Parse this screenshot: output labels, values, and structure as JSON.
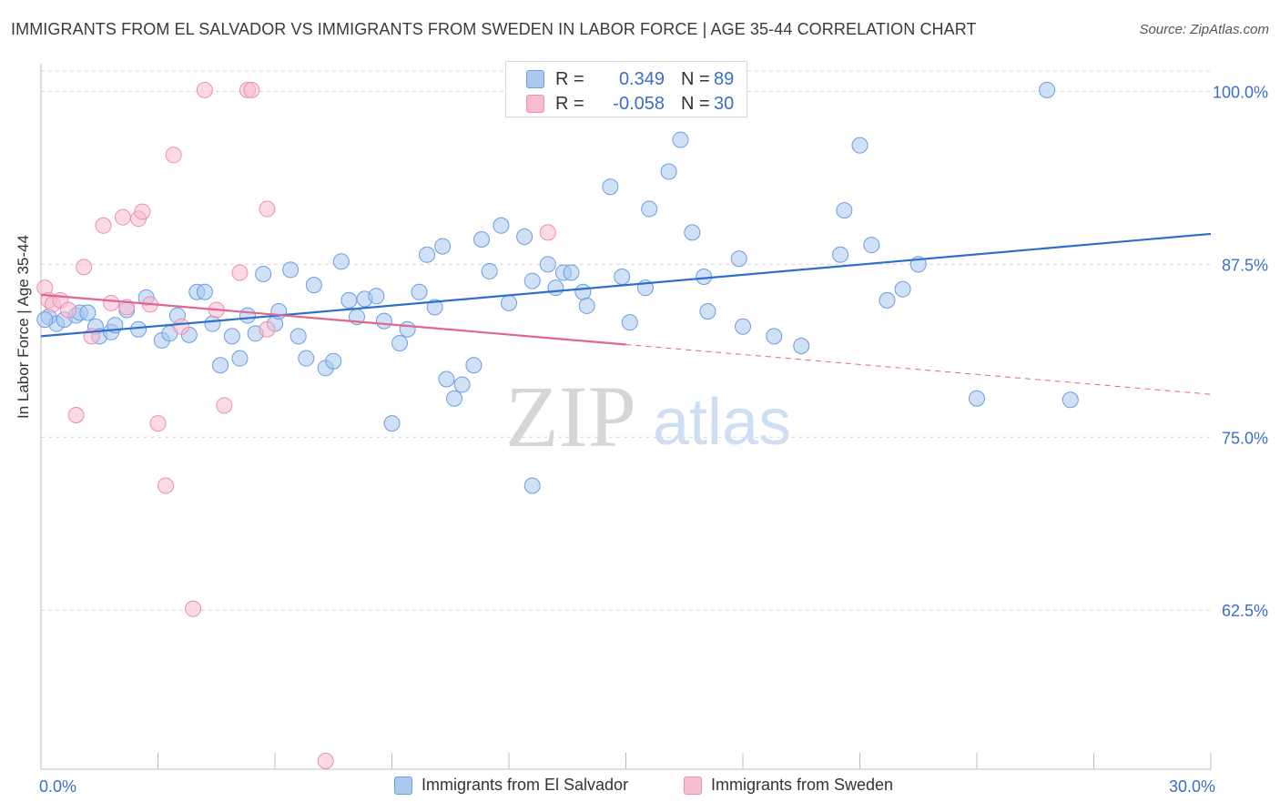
{
  "title": "IMMIGRANTS FROM EL SALVADOR VS IMMIGRANTS FROM SWEDEN IN LABOR FORCE | AGE 35-44 CORRELATION CHART",
  "source": "Source: ZipAtlas.com",
  "watermark": {
    "zip": "ZIP",
    "atlas": "atlas"
  },
  "colors": {
    "blue_fill": "#aac8f0",
    "blue_stroke": "#6a9ee0",
    "blue_line": "#2f6fcc",
    "pink_fill": "#f7bcd0",
    "pink_stroke": "#ec8fb0",
    "pink_line": "#e0668f",
    "tick_label": "#3a6fc9",
    "grid": "#d5d5d5"
  },
  "legend": {
    "rows": [
      {
        "r_label": "R =",
        "r_value": "0.349",
        "n_label": "N =",
        "n_value": "89"
      },
      {
        "r_label": "R =",
        "r_value": "-0.058",
        "n_label": "N =",
        "n_value": "30"
      }
    ]
  },
  "chart_data": {
    "type": "scatter",
    "title": "IMMIGRANTS FROM EL SALVADOR VS IMMIGRANTS FROM SWEDEN IN LABOR FORCE | AGE 35-44 CORRELATION CHART",
    "xlabel": "",
    "ylabel": "In Labor Force | Age 35-44",
    "xlim": [
      0,
      30
    ],
    "ylim": [
      51,
      102
    ],
    "x_tick_labels": [
      {
        "value": 0,
        "label": "0.0%"
      },
      {
        "value": 30,
        "label": "30.0%"
      }
    ],
    "y_ticks": [
      {
        "value": 62.5,
        "label": "62.5%"
      },
      {
        "value": 75.0,
        "label": "75.0%"
      },
      {
        "value": 87.5,
        "label": "87.5%"
      },
      {
        "value": 100.0,
        "label": "100.0%"
      }
    ],
    "grid": "horizontal dashed",
    "legend_position": "top-center",
    "series": [
      {
        "name": "Immigrants from El Salvador",
        "trend": {
          "x": [
            0,
            30
          ],
          "y": [
            82.3,
            89.7
          ],
          "dashed_from": null
        },
        "points": [
          [
            0.2,
            83.7
          ],
          [
            0.4,
            83.2
          ],
          [
            0.6,
            83.5
          ],
          [
            0.9,
            83.8
          ],
          [
            1.0,
            84.0
          ],
          [
            1.4,
            83.0
          ],
          [
            1.5,
            82.3
          ],
          [
            1.8,
            82.6
          ],
          [
            1.9,
            83.1
          ],
          [
            2.2,
            84.2
          ],
          [
            2.5,
            82.8
          ],
          [
            2.7,
            85.1
          ],
          [
            3.1,
            82.0
          ],
          [
            3.3,
            82.5
          ],
          [
            3.5,
            83.8
          ],
          [
            3.8,
            82.4
          ],
          [
            4.0,
            85.5
          ],
          [
            4.2,
            85.5
          ],
          [
            4.4,
            83.2
          ],
          [
            4.6,
            80.2
          ],
          [
            4.9,
            82.3
          ],
          [
            5.1,
            80.7
          ],
          [
            5.3,
            83.8
          ],
          [
            5.5,
            82.5
          ],
          [
            5.7,
            86.8
          ],
          [
            6.0,
            83.2
          ],
          [
            6.1,
            84.1
          ],
          [
            6.4,
            87.1
          ],
          [
            6.6,
            82.3
          ],
          [
            6.8,
            80.7
          ],
          [
            7.0,
            86.0
          ],
          [
            7.3,
            80.0
          ],
          [
            7.5,
            80.5
          ],
          [
            7.7,
            87.7
          ],
          [
            7.9,
            84.9
          ],
          [
            8.1,
            83.7
          ],
          [
            8.3,
            85.0
          ],
          [
            8.6,
            85.2
          ],
          [
            8.8,
            83.4
          ],
          [
            9.0,
            76.0
          ],
          [
            9.2,
            81.8
          ],
          [
            9.4,
            82.8
          ],
          [
            9.7,
            85.5
          ],
          [
            9.9,
            88.2
          ],
          [
            10.1,
            84.4
          ],
          [
            10.3,
            88.8
          ],
          [
            10.4,
            79.2
          ],
          [
            10.6,
            77.8
          ],
          [
            10.8,
            78.8
          ],
          [
            11.1,
            80.2
          ],
          [
            11.3,
            89.3
          ],
          [
            11.5,
            87.0
          ],
          [
            11.8,
            90.3
          ],
          [
            12.0,
            84.7
          ],
          [
            12.4,
            89.5
          ],
          [
            12.6,
            86.3
          ],
          [
            12.6,
            71.5
          ],
          [
            13.0,
            87.5
          ],
          [
            13.2,
            85.8
          ],
          [
            13.4,
            86.9
          ],
          [
            13.6,
            86.9
          ],
          [
            13.9,
            85.5
          ],
          [
            14.0,
            84.5
          ],
          [
            14.6,
            93.1
          ],
          [
            14.9,
            86.6
          ],
          [
            15.1,
            83.3
          ],
          [
            15.5,
            85.8
          ],
          [
            15.6,
            91.5
          ],
          [
            16.1,
            94.2
          ],
          [
            16.4,
            96.5
          ],
          [
            16.7,
            89.8
          ],
          [
            17.0,
            86.6
          ],
          [
            17.1,
            84.1
          ],
          [
            17.9,
            87.9
          ],
          [
            18.0,
            83.0
          ],
          [
            18.8,
            82.3
          ],
          [
            19.5,
            81.6
          ],
          [
            20.5,
            88.2
          ],
          [
            20.6,
            91.4
          ],
          [
            21.0,
            96.1
          ],
          [
            21.3,
            88.9
          ],
          [
            21.7,
            84.9
          ],
          [
            22.1,
            85.7
          ],
          [
            22.5,
            87.5
          ],
          [
            24.0,
            77.8
          ],
          [
            25.8,
            100.1
          ],
          [
            26.4,
            77.7
          ],
          [
            1.2,
            84.0
          ],
          [
            0.1,
            83.5
          ]
        ]
      },
      {
        "name": "Immigrants from Sweden",
        "trend": {
          "x": [
            0,
            30
          ],
          "y": [
            85.3,
            78.1
          ],
          "dashed_from": 15.0
        },
        "points": [
          [
            0.1,
            85.8
          ],
          [
            0.2,
            84.9
          ],
          [
            0.3,
            84.6
          ],
          [
            0.5,
            84.9
          ],
          [
            0.7,
            84.2
          ],
          [
            0.9,
            76.6
          ],
          [
            1.1,
            87.3
          ],
          [
            1.3,
            82.3
          ],
          [
            1.6,
            90.3
          ],
          [
            1.8,
            84.7
          ],
          [
            2.1,
            90.9
          ],
          [
            2.2,
            84.4
          ],
          [
            2.5,
            90.8
          ],
          [
            2.6,
            91.3
          ],
          [
            2.8,
            84.6
          ],
          [
            3.0,
            76.0
          ],
          [
            3.2,
            71.5
          ],
          [
            3.4,
            95.4
          ],
          [
            3.6,
            83.0
          ],
          [
            3.9,
            62.6
          ],
          [
            4.2,
            100.1
          ],
          [
            4.7,
            77.3
          ],
          [
            5.1,
            86.9
          ],
          [
            5.3,
            100.1
          ],
          [
            5.4,
            100.1
          ],
          [
            5.8,
            91.5
          ],
          [
            5.8,
            82.8
          ],
          [
            7.3,
            51.6
          ],
          [
            13.0,
            89.8
          ],
          [
            4.5,
            84.2
          ]
        ]
      }
    ]
  }
}
